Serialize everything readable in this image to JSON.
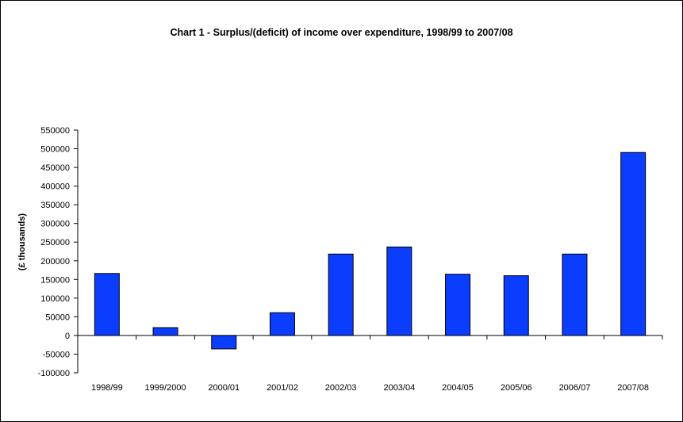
{
  "chart_data": {
    "type": "bar",
    "title": "Chart 1 - Surplus/(deficit) of income over expenditure, 1998/99 to 2007/08",
    "xlabel": "",
    "ylabel": "(£ thousands)",
    "categories": [
      "1998/99",
      "1999/2000",
      "2000/01",
      "2001/02",
      "2002/03",
      "2003/04",
      "2004/05",
      "2005/06",
      "2006/07",
      "2007/08"
    ],
    "values": [
      166000,
      21000,
      -36000,
      61000,
      218000,
      237000,
      164000,
      160000,
      218000,
      490000
    ],
    "ylim": [
      -100000,
      550000
    ],
    "yticks": [
      550000,
      500000,
      450000,
      400000,
      350000,
      300000,
      250000,
      200000,
      150000,
      100000,
      50000,
      0,
      -50000,
      -100000
    ],
    "grid": false,
    "legend": "none",
    "bar_color": "#0b3dff",
    "bar_stroke": "#000000"
  }
}
